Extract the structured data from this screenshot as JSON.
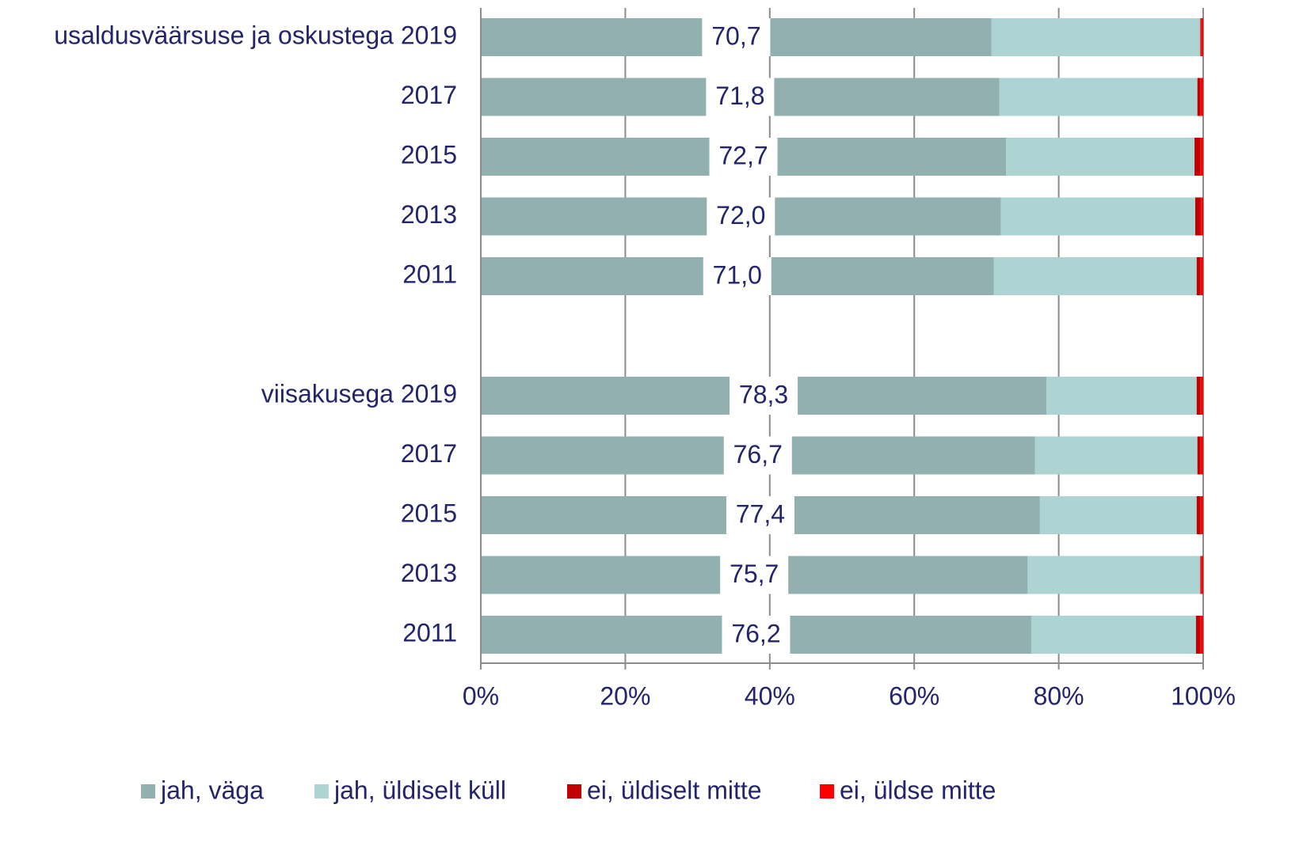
{
  "chart_data": {
    "type": "stacked-bar-horizontal",
    "categories": [
      "usaldusväärsuse ja oskustega 2019",
      "2017",
      "2015",
      "2013",
      "2011",
      null,
      "viisakusega 2019",
      "2017",
      "2015",
      "2013",
      "2011"
    ],
    "series": [
      {
        "name": "jah, väga",
        "color": "#93b0b0",
        "values": [
          70.7,
          71.8,
          72.7,
          72.0,
          71.0,
          null,
          78.3,
          76.7,
          77.4,
          75.7,
          76.2
        ],
        "value_labels": [
          "70,7",
          "71,8",
          "72,7",
          "72,0",
          "71,0",
          null,
          "78,3",
          "76,7",
          "77,4",
          "75,7",
          "76,2"
        ]
      },
      {
        "name": "jah, üldiselt küll",
        "color": "#aed3d3",
        "values": [
          28.9,
          27.4,
          26.1,
          26.9,
          28.1,
          null,
          20.8,
          22.5,
          21.7,
          23.9,
          22.8
        ]
      },
      {
        "name": "ei, üldiselt mitte",
        "color": "#c00000",
        "values": [
          0.1,
          0.4,
          0.8,
          0.8,
          0.5,
          null,
          0.5,
          0.4,
          0.5,
          0.1,
          0.6
        ]
      },
      {
        "name": "ei, üldse mitte",
        "color": "#ff0000",
        "values": [
          0.3,
          0.4,
          0.4,
          0.3,
          0.4,
          null,
          0.4,
          0.4,
          0.4,
          0.3,
          0.4
        ]
      }
    ],
    "xlim": [
      0,
      100
    ],
    "xticks": [
      {
        "value": 0,
        "label": "0%"
      },
      {
        "value": 20,
        "label": "20%"
      },
      {
        "value": 40,
        "label": "40%"
      },
      {
        "value": 60,
        "label": "60%"
      },
      {
        "value": 80,
        "label": "80%"
      },
      {
        "value": 100,
        "label": "100%"
      }
    ],
    "grid": true,
    "legend": "bottom"
  }
}
